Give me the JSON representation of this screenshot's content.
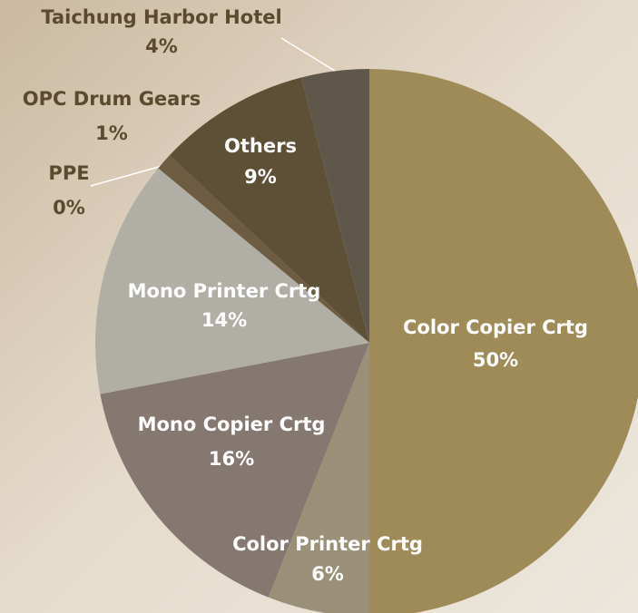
{
  "chart_data": {
    "type": "pie",
    "categories": [
      "Color Copier Crtg",
      "Color Printer Crtg",
      "Mono Copier Crtg",
      "Mono Printer Crtg",
      "PPE",
      "OPC Drum Gears",
      "Others",
      "Taichung Harbor Hotel"
    ],
    "values": [
      50,
      6,
      16,
      14,
      0,
      1,
      9,
      4
    ],
    "value_labels": [
      "50%",
      "6%",
      "16%",
      "14%",
      "0%",
      "1%",
      "9%",
      "4%"
    ],
    "colors": [
      "#9e8b57",
      "#9a9078",
      "#857870",
      "#b1afa5",
      "#7a6c55",
      "#6d5c42",
      "#5d5036",
      "#5f574a"
    ]
  }
}
